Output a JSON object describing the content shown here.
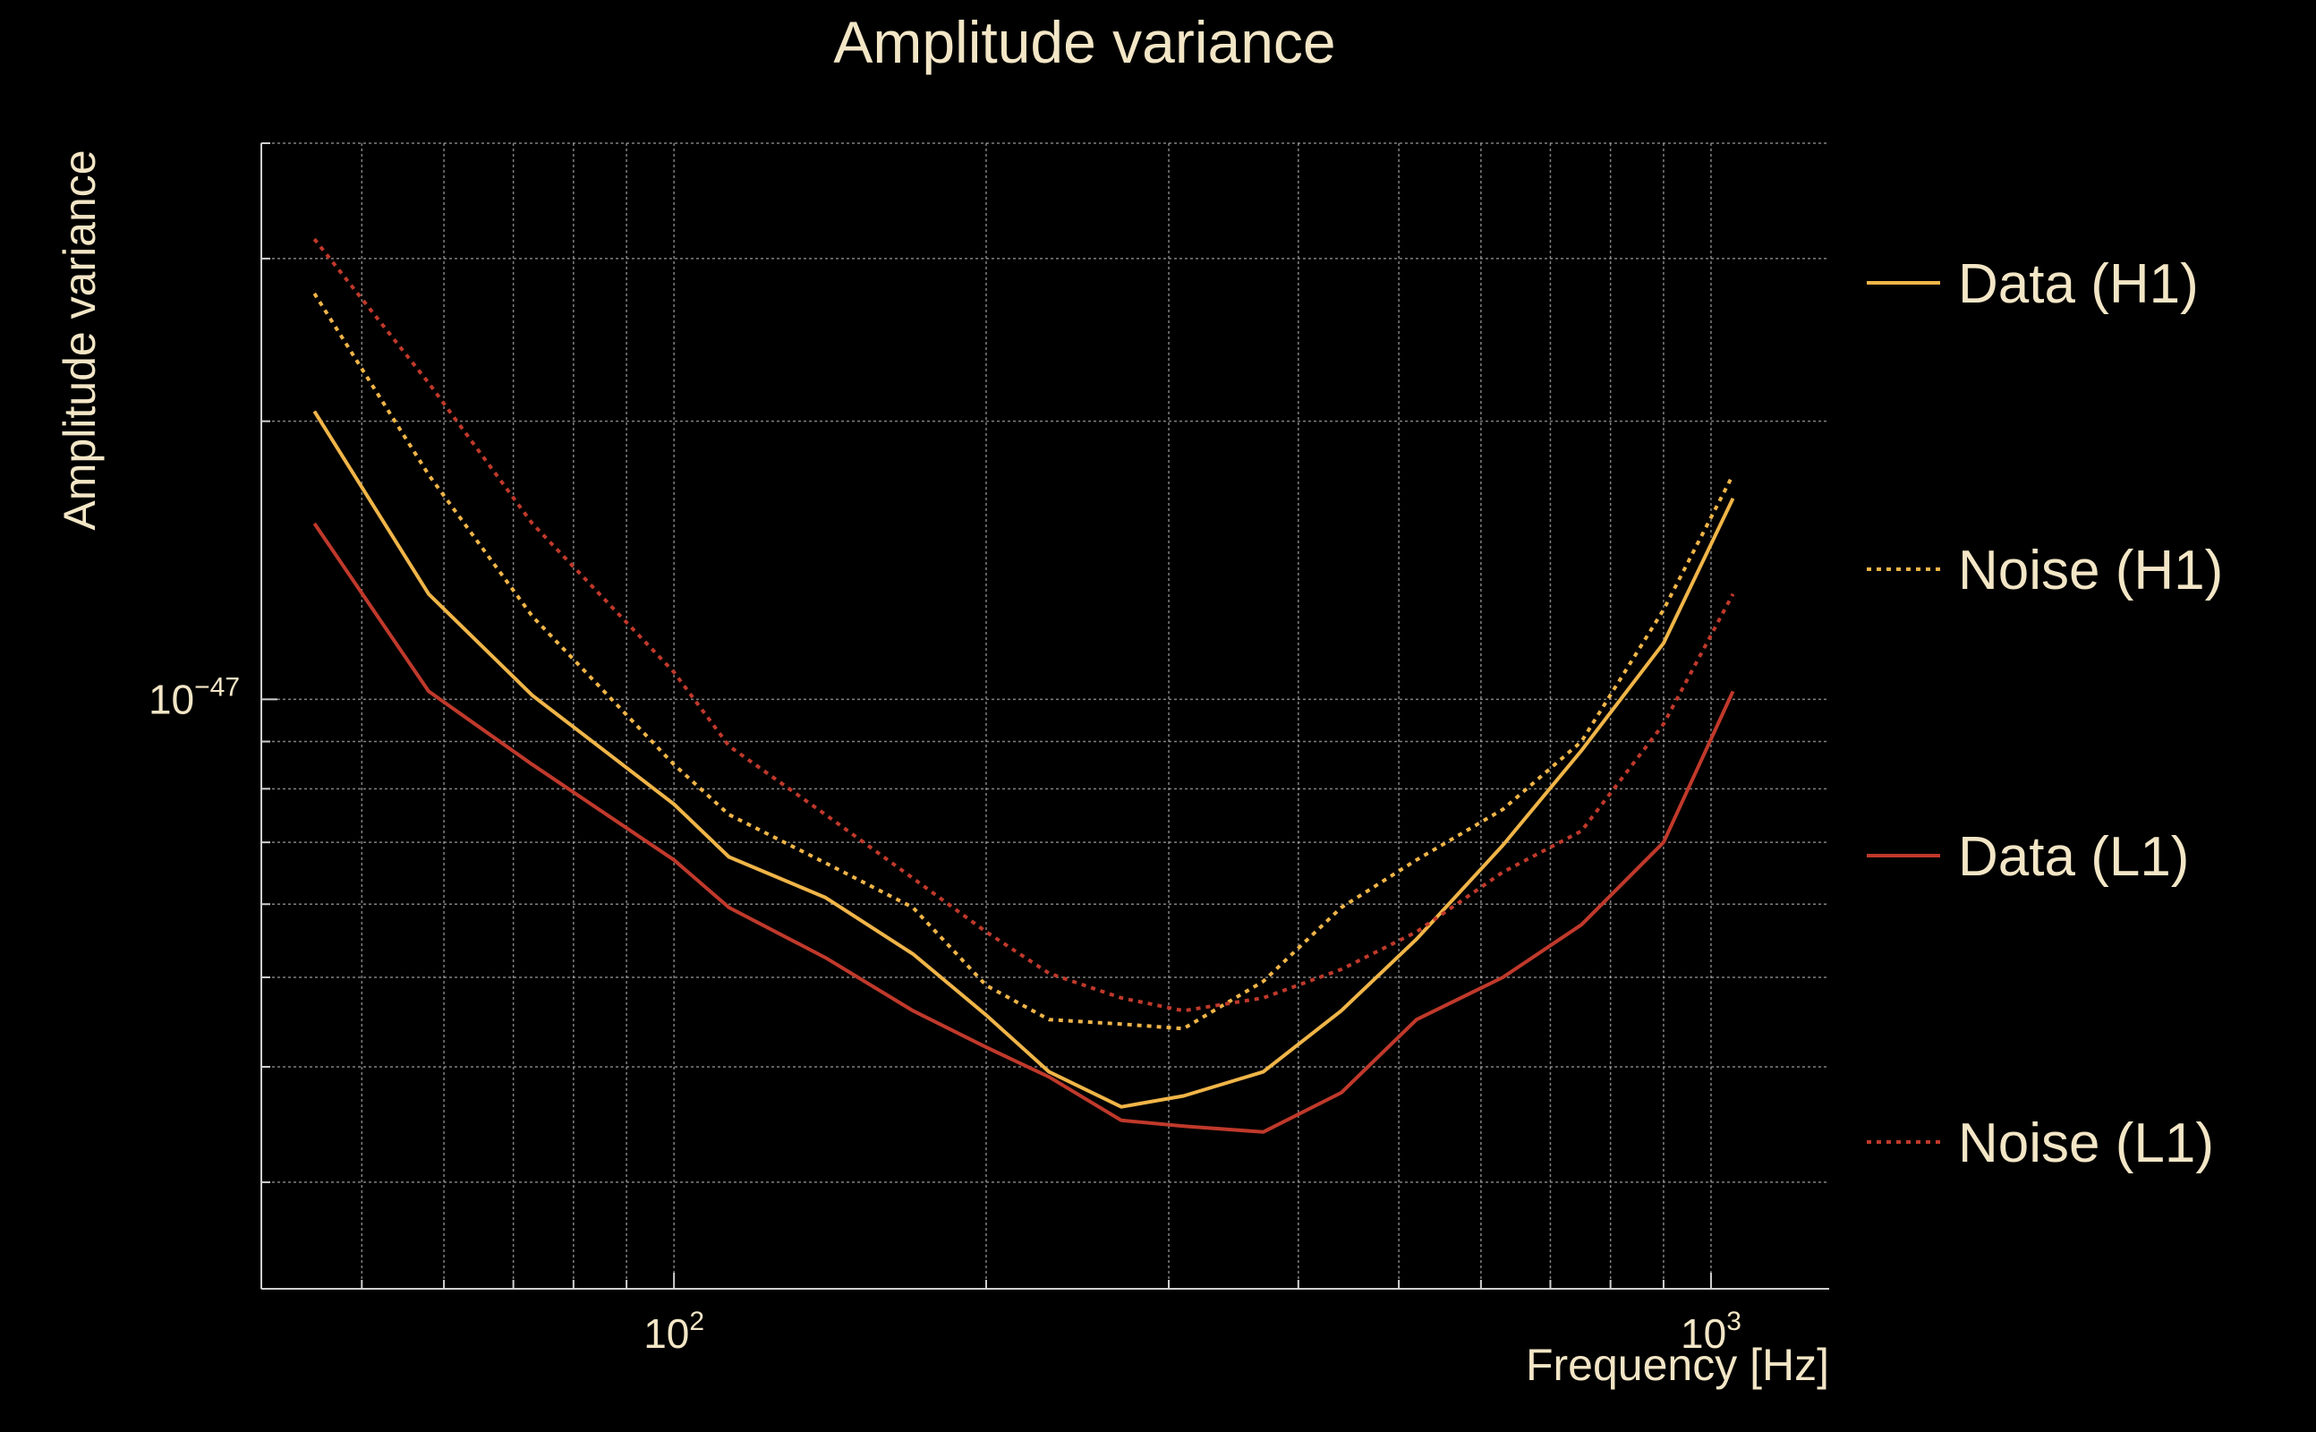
{
  "chart_data": {
    "type": "line",
    "title": "Amplitude variance",
    "xlabel": "Frequency [Hz]",
    "ylabel": "Amplitude variance",
    "xscale": "log",
    "yscale": "log",
    "xlim": [
      40,
      1300
    ],
    "ylim": [
      2.3e-48,
      4e-47
    ],
    "grid": true,
    "legend_position": "right",
    "x_tick_labels": [
      {
        "value": 100,
        "base": "10",
        "exp": "2"
      },
      {
        "value": 1000,
        "base": "10",
        "exp": "3"
      }
    ],
    "y_tick_labels": [
      {
        "value": 1e-47,
        "base": "10",
        "exp": "−47"
      }
    ],
    "x": [
      45,
      58,
      73,
      100,
      113,
      140,
      170,
      200,
      230,
      270,
      310,
      370,
      440,
      520,
      630,
      750,
      900,
      1050
    ],
    "series": [
      {
        "name": "Data (H1)",
        "color": "#f0b548",
        "dash": "solid",
        "values": [
          2.05e-47,
          1.3e-47,
          1.01e-47,
          7.7e-48,
          6.75e-48,
          6.1e-48,
          5.3e-48,
          4.55e-48,
          3.95e-48,
          3.62e-48,
          3.72e-48,
          3.95e-48,
          4.6e-48,
          5.5e-48,
          6.95e-48,
          8.8e-48,
          1.15e-47,
          1.65e-47
        ]
      },
      {
        "name": "Noise (H1)",
        "color": "#f0b548",
        "dash": "dotted",
        "values": [
          2.75e-47,
          1.75e-47,
          1.23e-47,
          8.5e-48,
          7.5e-48,
          6.65e-48,
          5.95e-48,
          4.9e-48,
          4.5e-48,
          4.45e-48,
          4.4e-48,
          4.95e-48,
          5.95e-48,
          6.7e-48,
          7.6e-48,
          9e-48,
          1.25e-47,
          1.75e-47
        ]
      },
      {
        "name": "Data (L1)",
        "color": "#c0392b",
        "dash": "solid",
        "values": [
          1.55e-47,
          1.02e-47,
          8.5e-48,
          6.7e-48,
          5.95e-48,
          5.25e-48,
          4.6e-48,
          4.2e-48,
          3.9e-48,
          3.5e-48,
          3.45e-48,
          3.4e-48,
          3.75e-48,
          4.5e-48,
          5e-48,
          5.7e-48,
          7e-48,
          1.02e-47
        ]
      },
      {
        "name": "Noise (L1)",
        "color": "#c0392b",
        "dash": "dotted",
        "values": [
          3.15e-47,
          2.2e-47,
          1.55e-47,
          1.07e-47,
          8.9e-48,
          7.5e-48,
          6.4e-48,
          5.6e-48,
          5.05e-48,
          4.75e-48,
          4.6e-48,
          4.75e-48,
          5.1e-48,
          5.6e-48,
          6.5e-48,
          7.2e-48,
          9.4e-48,
          1.3e-47
        ]
      }
    ]
  }
}
